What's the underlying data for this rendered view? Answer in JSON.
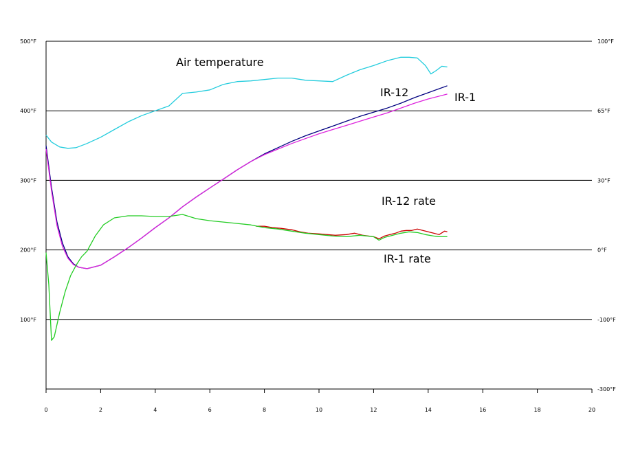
{
  "chart_data": {
    "type": "line",
    "grid": true,
    "x_ticks": [
      "0",
      "2",
      "4",
      "6",
      "8",
      "10",
      "12",
      "14",
      "16",
      "18",
      "20"
    ],
    "xlim": [
      0,
      20
    ],
    "y_left_ticks": [
      "500°F",
      "400°F",
      "300°F",
      "200°F",
      "100°F"
    ],
    "ylim_left": [
      0,
      500
    ],
    "y_right_ticks": [
      "100°F",
      "65°F",
      "30°F",
      "0°F",
      "-100°F",
      "-300°F"
    ],
    "annotations": {
      "air": "Air temperature",
      "ir12": "IR-12",
      "ir1": "IR-1",
      "ir12rate": "IR-12 rate",
      "ir1rate": "IR-1 rate"
    },
    "series": [
      {
        "name": "Air temperature",
        "color": "#22ccdd",
        "x": [
          0,
          0.2,
          0.5,
          0.8,
          1.1,
          1.5,
          2,
          2.5,
          3,
          3.5,
          4,
          4.5,
          5,
          5.5,
          6,
          6.5,
          7,
          7.5,
          8,
          8.5,
          9,
          9.5,
          10,
          10.5,
          11,
          11.5,
          12,
          12.5,
          13,
          13.3,
          13.6,
          13.9,
          14.1,
          14.3,
          14.5,
          14.7
        ],
        "values": [
          365,
          355,
          348,
          346,
          347,
          353,
          362,
          373,
          384,
          393,
          400,
          407,
          425,
          427,
          430,
          438,
          442,
          443,
          445,
          447,
          447,
          444,
          443,
          442,
          451,
          459,
          465,
          472,
          477,
          477,
          476,
          465,
          453,
          458,
          464,
          463
        ]
      },
      {
        "name": "IR-12",
        "color": "#000080",
        "x": [
          0,
          0.2,
          0.4,
          0.6,
          0.8,
          1.0,
          1.2,
          1.5,
          2,
          2.5,
          3,
          3.5,
          4,
          4.5,
          5,
          5.5,
          6,
          6.5,
          7,
          7.5,
          8,
          8.5,
          9,
          9.5,
          10,
          10.5,
          11,
          11.5,
          12,
          12.5,
          13,
          13.5,
          14,
          14.7
        ],
        "values": [
          350,
          290,
          240,
          210,
          190,
          180,
          175,
          173,
          178,
          190,
          203,
          217,
          232,
          246,
          262,
          276,
          289,
          302,
          315,
          327,
          338,
          347,
          356,
          364,
          371,
          378,
          385,
          392,
          398,
          404,
          411,
          419,
          426,
          436
        ]
      },
      {
        "name": "IR-1",
        "color": "#dd22dd",
        "x": [
          0,
          0.2,
          0.4,
          0.6,
          0.8,
          1.0,
          1.2,
          1.5,
          2,
          2.5,
          3,
          3.5,
          4,
          4.5,
          5,
          5.5,
          6,
          6.5,
          7,
          7.5,
          8,
          8.5,
          9,
          9.5,
          10,
          10.5,
          11,
          11.5,
          12,
          12.5,
          13,
          13.5,
          14,
          14.7
        ],
        "values": [
          345,
          285,
          235,
          205,
          188,
          179,
          175,
          173,
          178,
          190,
          203,
          217,
          232,
          246,
          262,
          276,
          289,
          302,
          315,
          327,
          337,
          345,
          353,
          360,
          367,
          373,
          379,
          385,
          391,
          397,
          404,
          411,
          417,
          424
        ]
      },
      {
        "name": "IR-12 rate",
        "color": "#cc0000",
        "x": [
          7.7,
          8,
          8.3,
          8.6,
          9,
          9.3,
          9.6,
          10,
          10.3,
          10.6,
          11,
          11.3,
          11.6,
          12,
          12.2,
          12.4,
          12.6,
          12.8,
          13,
          13.2,
          13.4,
          13.6,
          13.8,
          14,
          14.2,
          14.4,
          14.6,
          14.7
        ],
        "values": [
          234,
          234,
          232,
          231,
          229,
          226,
          224,
          223,
          222,
          221,
          222,
          224,
          221,
          219,
          216,
          220,
          222,
          224,
          227,
          228,
          228,
          230,
          228,
          226,
          224,
          222,
          227,
          226
        ]
      },
      {
        "name": "IR-1 rate",
        "color": "#22cc22",
        "x": [
          0,
          0.1,
          0.2,
          0.3,
          0.5,
          0.7,
          0.9,
          1.1,
          1.3,
          1.5,
          1.8,
          2.1,
          2.5,
          3,
          3.5,
          4,
          4.5,
          5,
          5.5,
          6,
          6.5,
          7,
          7.5,
          8,
          8.5,
          9,
          9.5,
          10,
          10.5,
          11,
          11.5,
          12,
          12.2,
          12.4,
          12.6,
          12.8,
          13,
          13.3,
          13.6,
          13.9,
          14.2,
          14.4,
          14.7
        ],
        "values": [
          196,
          150,
          70,
          75,
          110,
          140,
          163,
          178,
          190,
          198,
          220,
          236,
          246,
          249,
          249,
          248,
          248,
          251,
          245,
          242,
          240,
          238,
          236,
          232,
          230,
          227,
          224,
          222,
          220,
          219,
          221,
          219,
          214,
          218,
          220,
          222,
          224,
          226,
          225,
          222,
          220,
          219,
          219
        ]
      }
    ]
  }
}
